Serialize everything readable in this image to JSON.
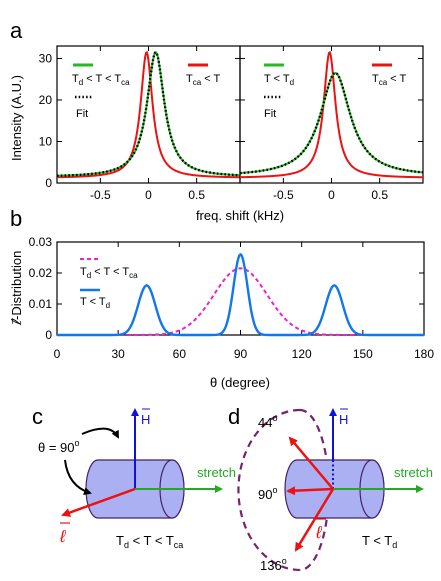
{
  "chart_data": [
    {
      "panel_label": "a",
      "type": "line",
      "xlabel": "freq. shift (kHz)",
      "ylabel": "Intensity (A.U.)",
      "xlim": [
        -0.95,
        0.95
      ],
      "ylim": [
        0,
        33
      ],
      "xticks": [
        "-0.5",
        "0",
        "0.5"
      ],
      "xtick_values": [
        -0.5,
        0,
        0.5
      ],
      "yticks": [
        "0",
        "10",
        "20",
        "30"
      ],
      "ytick_values": [
        0,
        10,
        20,
        30
      ],
      "subplots": [
        {
          "legend": [
            {
              "label": "T_d < T < T_ca",
              "color": "#22bb22",
              "style": "solid"
            },
            {
              "label": "Fit",
              "color": "#000000",
              "style": "dotted"
            },
            {
              "label": "T_ca < T",
              "color": "#ee1111",
              "style": "solid"
            }
          ],
          "series": [
            {
              "color": "#ee1111",
              "style": "solid",
              "center": -0.02,
              "width": 0.075,
              "amp": 31.5,
              "base": 1.2
            },
            {
              "color": "#22bb22",
              "style": "solid",
              "center": 0.075,
              "width": 0.11,
              "amp": 31.5,
              "base": 1.4
            },
            {
              "color": "#000000",
              "style": "dotted",
              "center": 0.075,
              "width": 0.11,
              "amp": 31.5,
              "base": 1.4
            }
          ]
        },
        {
          "legend": [
            {
              "label": "T < T_d",
              "color": "#22bb22",
              "style": "solid"
            },
            {
              "label": "Fit",
              "color": "#000000",
              "style": "dotted"
            },
            {
              "label": "T_ca < T",
              "color": "#ee1111",
              "style": "solid"
            }
          ],
          "series": [
            {
              "color": "#ee1111",
              "style": "solid",
              "center": -0.02,
              "width": 0.075,
              "amp": 31.5,
              "base": 1.2
            },
            {
              "color": "#22bb22",
              "style": "solid",
              "center": 0.04,
              "width": 0.19,
              "amp": 26.5,
              "base": 1.5
            },
            {
              "color": "#000000",
              "style": "dotted",
              "center": 0.04,
              "width": 0.19,
              "amp": 26.5,
              "base": 1.5
            }
          ]
        }
      ]
    },
    {
      "panel_label": "b",
      "type": "line",
      "xlabel": "θ (degree)",
      "ylabel": "ℓ⃗-Distribution",
      "xlim": [
        0,
        180
      ],
      "ylim": [
        0,
        0.03
      ],
      "xticks": [
        "0",
        "30",
        "60",
        "90",
        "120",
        "150",
        "180"
      ],
      "xtick_values": [
        0,
        30,
        60,
        90,
        120,
        150,
        180
      ],
      "yticks": [
        "0",
        "0.01",
        "0.02",
        "0.03"
      ],
      "ytick_values": [
        0,
        0.01,
        0.02,
        0.03
      ],
      "legend": [
        {
          "label": "T_d < T < T_ca",
          "color": "#ee22cc",
          "style": "dashed"
        },
        {
          "label": "T < T_d",
          "color": "#1177ee",
          "style": "solid"
        }
      ],
      "series": [
        {
          "color": "#ee22cc",
          "style": "dashed",
          "peaks": [
            {
              "center": 90,
              "amp": 0.0215,
              "sigma": 13
            }
          ]
        },
        {
          "color": "#1177ee",
          "style": "solid",
          "peaks": [
            {
              "center": 44,
              "amp": 0.016,
              "sigma": 4.2
            },
            {
              "center": 90,
              "amp": 0.026,
              "sigma": 3.4
            },
            {
              "center": 136,
              "amp": 0.016,
              "sigma": 4.2
            }
          ]
        }
      ]
    }
  ],
  "diagrams": {
    "c": {
      "panel_label": "c",
      "angle_label": "θ = 90",
      "angle_sup": "o",
      "h_label": "H",
      "l_label": "ℓ",
      "stretch_label": "stretch",
      "condition": "T_d < T < T_ca"
    },
    "d": {
      "panel_label": "d",
      "h_label": "H",
      "l_label": "ℓ",
      "stretch_label": "stretch",
      "condition": "T < T_d",
      "angles": [
        "44",
        "90",
        "136"
      ],
      "angle_sup": "o"
    }
  },
  "colors": {
    "red": "#ee1111",
    "green": "#22bb22",
    "blue": "#1111dd",
    "magenta": "#ee22cc",
    "light_blue": "#1177ee",
    "cylinder_fill": "#aab0f2",
    "dashed_purple": "#77226a"
  }
}
